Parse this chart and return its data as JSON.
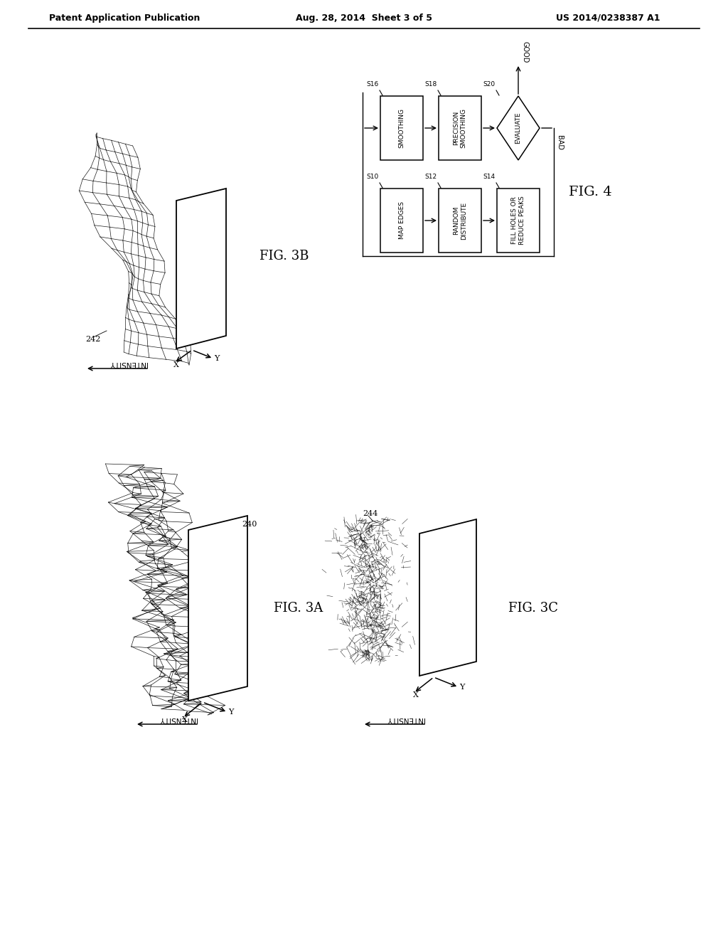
{
  "bg_color": "#ffffff",
  "header_left": "Patent Application Publication",
  "header_mid": "Aug. 28, 2014  Sheet 3 of 5",
  "header_right": "US 2014/0238387 A1",
  "fig3b_label": "FIG. 3B",
  "fig3a_label": "FIG. 3A",
  "fig3c_label": "FIG. 3C",
  "fig4_label": "FIG. 4",
  "label_242": "242",
  "label_240": "240",
  "label_244": "244",
  "intensity_label": "INTENSITY",
  "good_label": "GOOD",
  "bad_label": "BAD",
  "flowchart": {
    "top_row_labels": [
      "SMOOTHING",
      "PRECISION SMOOTHING"
    ],
    "top_row_steps": [
      "S16",
      "S18"
    ],
    "bot_row_labels": [
      "MAP EDGES",
      "RANDOM DISTRIBUTE",
      "FILL HOLES OR\nREDUCE PEAKS"
    ],
    "bot_row_steps": [
      "S10",
      "S12",
      "S14"
    ],
    "eval_label": "EVALUATE",
    "eval_step": "S20"
  }
}
